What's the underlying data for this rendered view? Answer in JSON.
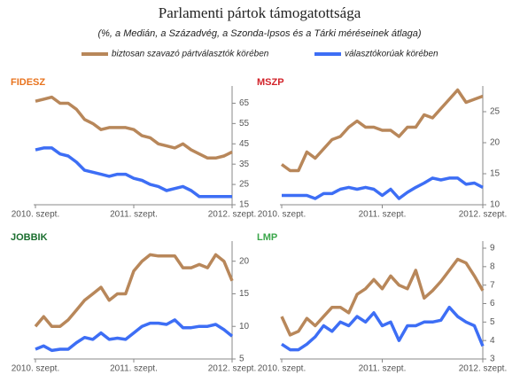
{
  "header": {
    "title": "Parlamenti pártok támogatottsága",
    "subtitle": "(%, a Medián, a Századvég, a Szonda-Ipsos és a Tárki méréseinek átlaga)"
  },
  "legend": [
    {
      "name": "biztosan szavazó pártválasztók körében",
      "color": "#b8875a"
    },
    {
      "name": "választókorúak körében",
      "color": "#3d6ef5"
    }
  ],
  "chart_data": [
    {
      "type": "line",
      "logo": "FIDESZ",
      "categories": [
        "2010. szept.",
        null,
        null,
        null,
        null,
        null,
        null,
        null,
        null,
        null,
        null,
        null,
        "2011. szept.",
        null,
        null,
        null,
        null,
        null,
        null,
        null,
        null,
        null,
        null,
        null,
        "2012. szept."
      ],
      "ylim": [
        15,
        70
      ],
      "yticks": [
        15,
        25,
        35,
        45,
        55,
        65
      ],
      "series": [
        {
          "values": [
            66,
            67,
            68,
            65,
            65,
            62,
            57,
            55,
            52,
            53,
            53,
            53,
            52,
            49,
            48,
            45,
            44,
            43,
            45,
            42,
            40,
            38,
            38,
            39,
            41
          ]
        },
        {
          "values": [
            42,
            43,
            43,
            40,
            39,
            36,
            32,
            31,
            30,
            29,
            30,
            30,
            28,
            27,
            25,
            24,
            22,
            23,
            24,
            22,
            19,
            19,
            19,
            19,
            19
          ]
        }
      ]
    },
    {
      "type": "line",
      "logo": "MSZP",
      "categories": [
        "2010. szept.",
        null,
        null,
        null,
        null,
        null,
        null,
        null,
        null,
        null,
        null,
        null,
        "2011. szept.",
        null,
        null,
        null,
        null,
        null,
        null,
        null,
        null,
        null,
        null,
        null,
        "2012. szept."
      ],
      "ylim": [
        10,
        28
      ],
      "yticks": [
        10,
        15,
        20,
        25
      ],
      "series": [
        {
          "values": [
            16.5,
            15.5,
            15.5,
            18.5,
            17.5,
            19,
            20.5,
            21,
            22.5,
            23.5,
            22.5,
            22.5,
            22,
            22,
            21,
            22.5,
            22.5,
            24.5,
            24,
            25.5,
            27,
            28.5,
            26.5,
            27,
            27.5
          ]
        },
        {
          "values": [
            11.5,
            11.5,
            11.5,
            11.5,
            11,
            11.8,
            11.8,
            12.5,
            12.8,
            12.5,
            12.8,
            12.5,
            11.5,
            12.5,
            11,
            12,
            12.8,
            13.5,
            14.3,
            14,
            14.3,
            14.3,
            13.3,
            13.5,
            12.8
          ]
        }
      ]
    },
    {
      "type": "line",
      "logo": "JOBBIK",
      "categories": [
        "2010. szept.",
        null,
        null,
        null,
        null,
        null,
        null,
        null,
        null,
        null,
        null,
        null,
        "2011. szept.",
        null,
        null,
        null,
        null,
        null,
        null,
        null,
        null,
        null,
        null,
        null,
        "2012. szept."
      ],
      "ylim": [
        5,
        22
      ],
      "yticks": [
        5,
        10,
        15,
        20
      ],
      "series": [
        {
          "values": [
            10,
            11.5,
            10,
            10,
            11,
            12.5,
            14,
            15,
            16,
            14,
            15,
            15,
            18.5,
            20,
            21,
            20.8,
            20.8,
            20.8,
            19,
            19,
            19.5,
            19,
            21,
            20,
            17
          ]
        },
        {
          "values": [
            6.5,
            7,
            6.3,
            6.5,
            6.5,
            7.5,
            8.3,
            8,
            9,
            8,
            8.2,
            8,
            9,
            10,
            10.5,
            10.5,
            10.3,
            11,
            9.8,
            9.8,
            10,
            10,
            10.3,
            9.5,
            8.5
          ]
        }
      ]
    },
    {
      "type": "line",
      "logo": "LMP",
      "categories": [
        "2010. szept.",
        null,
        null,
        null,
        null,
        null,
        null,
        null,
        null,
        null,
        null,
        null,
        "2011. szept.",
        null,
        null,
        null,
        null,
        null,
        null,
        null,
        null,
        null,
        null,
        null,
        "2012. szept."
      ],
      "ylim": [
        3,
        9
      ],
      "yticks": [
        3,
        4,
        5,
        6,
        7,
        8,
        9
      ],
      "series": [
        {
          "values": [
            5.3,
            4.3,
            4.5,
            5.2,
            4.8,
            5.3,
            5.8,
            5.8,
            5.5,
            6.5,
            6.8,
            7.3,
            6.8,
            7.5,
            7,
            6.8,
            7.8,
            6.3,
            6.7,
            7.2,
            7.8,
            8.4,
            8.2,
            7.5,
            6.7
          ]
        },
        {
          "values": [
            3.8,
            3.5,
            3.5,
            3.8,
            4.2,
            4.8,
            4.5,
            5,
            4.8,
            5.3,
            5,
            5.5,
            4.8,
            5,
            4,
            4.8,
            4.8,
            5,
            5,
            5.1,
            5.8,
            5.3,
            5,
            4.8,
            3.7
          ]
        }
      ]
    }
  ]
}
